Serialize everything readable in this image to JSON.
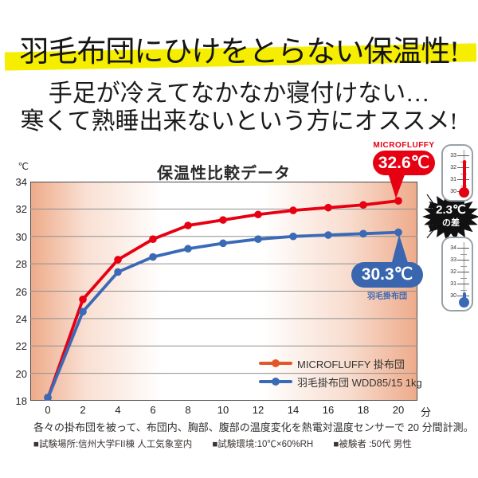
{
  "header": {
    "headline": "羽毛布団にひけをとらない保温性!",
    "subtitle_line1": "手足が冷えてなかなか寝付けない…",
    "subtitle_line2": "寒くて熟睡出来ないという方にオススメ!",
    "highlight_color": "#f6ee00"
  },
  "chart": {
    "title": "保温性比較データ",
    "y_unit": "℃",
    "x_unit": "分",
    "callout_red": {
      "brand": "MICROFLUFFY",
      "value": "32.6℃",
      "color": "#e60012"
    },
    "callout_blue": {
      "value": "30.3℃",
      "label": "羽毛掛布団",
      "color": "#3a66b0"
    },
    "callout_diff": {
      "value": "2.3℃",
      "suffix": "の差",
      "color": "#111111"
    }
  },
  "chart_data": {
    "type": "line",
    "title": "保温性比較データ",
    "x": [
      0,
      2,
      4,
      6,
      8,
      10,
      12,
      14,
      16,
      18,
      20
    ],
    "x_unit": "分",
    "y_unit": "℃",
    "ylim": [
      18,
      34
    ],
    "ytick_step": 2,
    "grid": "horizontal-only",
    "legend_position": "inside-bottom-right",
    "plot_bg": "peach-to-white horizontal gradient",
    "series": [
      {
        "name": "MICROFLUFFY 掛布団",
        "color": "#e60012",
        "legend_color": "#e0582a",
        "values": [
          18.0,
          25.4,
          28.3,
          29.8,
          30.8,
          31.2,
          31.6,
          31.9,
          32.1,
          32.3,
          32.6
        ]
      },
      {
        "name": "羽毛掛布団 WDD85/15 1kg",
        "color": "#3a6ab5",
        "legend_color": "#3a6ab5",
        "values": [
          18.0,
          24.5,
          27.4,
          28.5,
          29.1,
          29.5,
          29.8,
          30.0,
          30.1,
          30.2,
          30.3
        ]
      }
    ],
    "annotations": {
      "final_red": "32.6℃",
      "final_blue": "30.3℃",
      "difference": "2.3℃の差"
    }
  },
  "thermometers": {
    "top": {
      "scale": [
        33,
        32,
        31,
        30
      ],
      "color": "#e60012",
      "level": 32.6
    },
    "bottom": {
      "scale": [
        34,
        33,
        32,
        31,
        30
      ],
      "color": "#3a6ab5",
      "level": 30.3
    }
  },
  "footer": {
    "line1": "各々の掛布団を被って、布団内、胸部、腹部の温度変化を熱電対温度センサーで 20 分間計測。",
    "line2_items": [
      "■試験場所:信州大学FII棟 人工気象室内",
      "■試験環境:10℃×60%RH",
      "■被験者 :50代 男性"
    ]
  }
}
